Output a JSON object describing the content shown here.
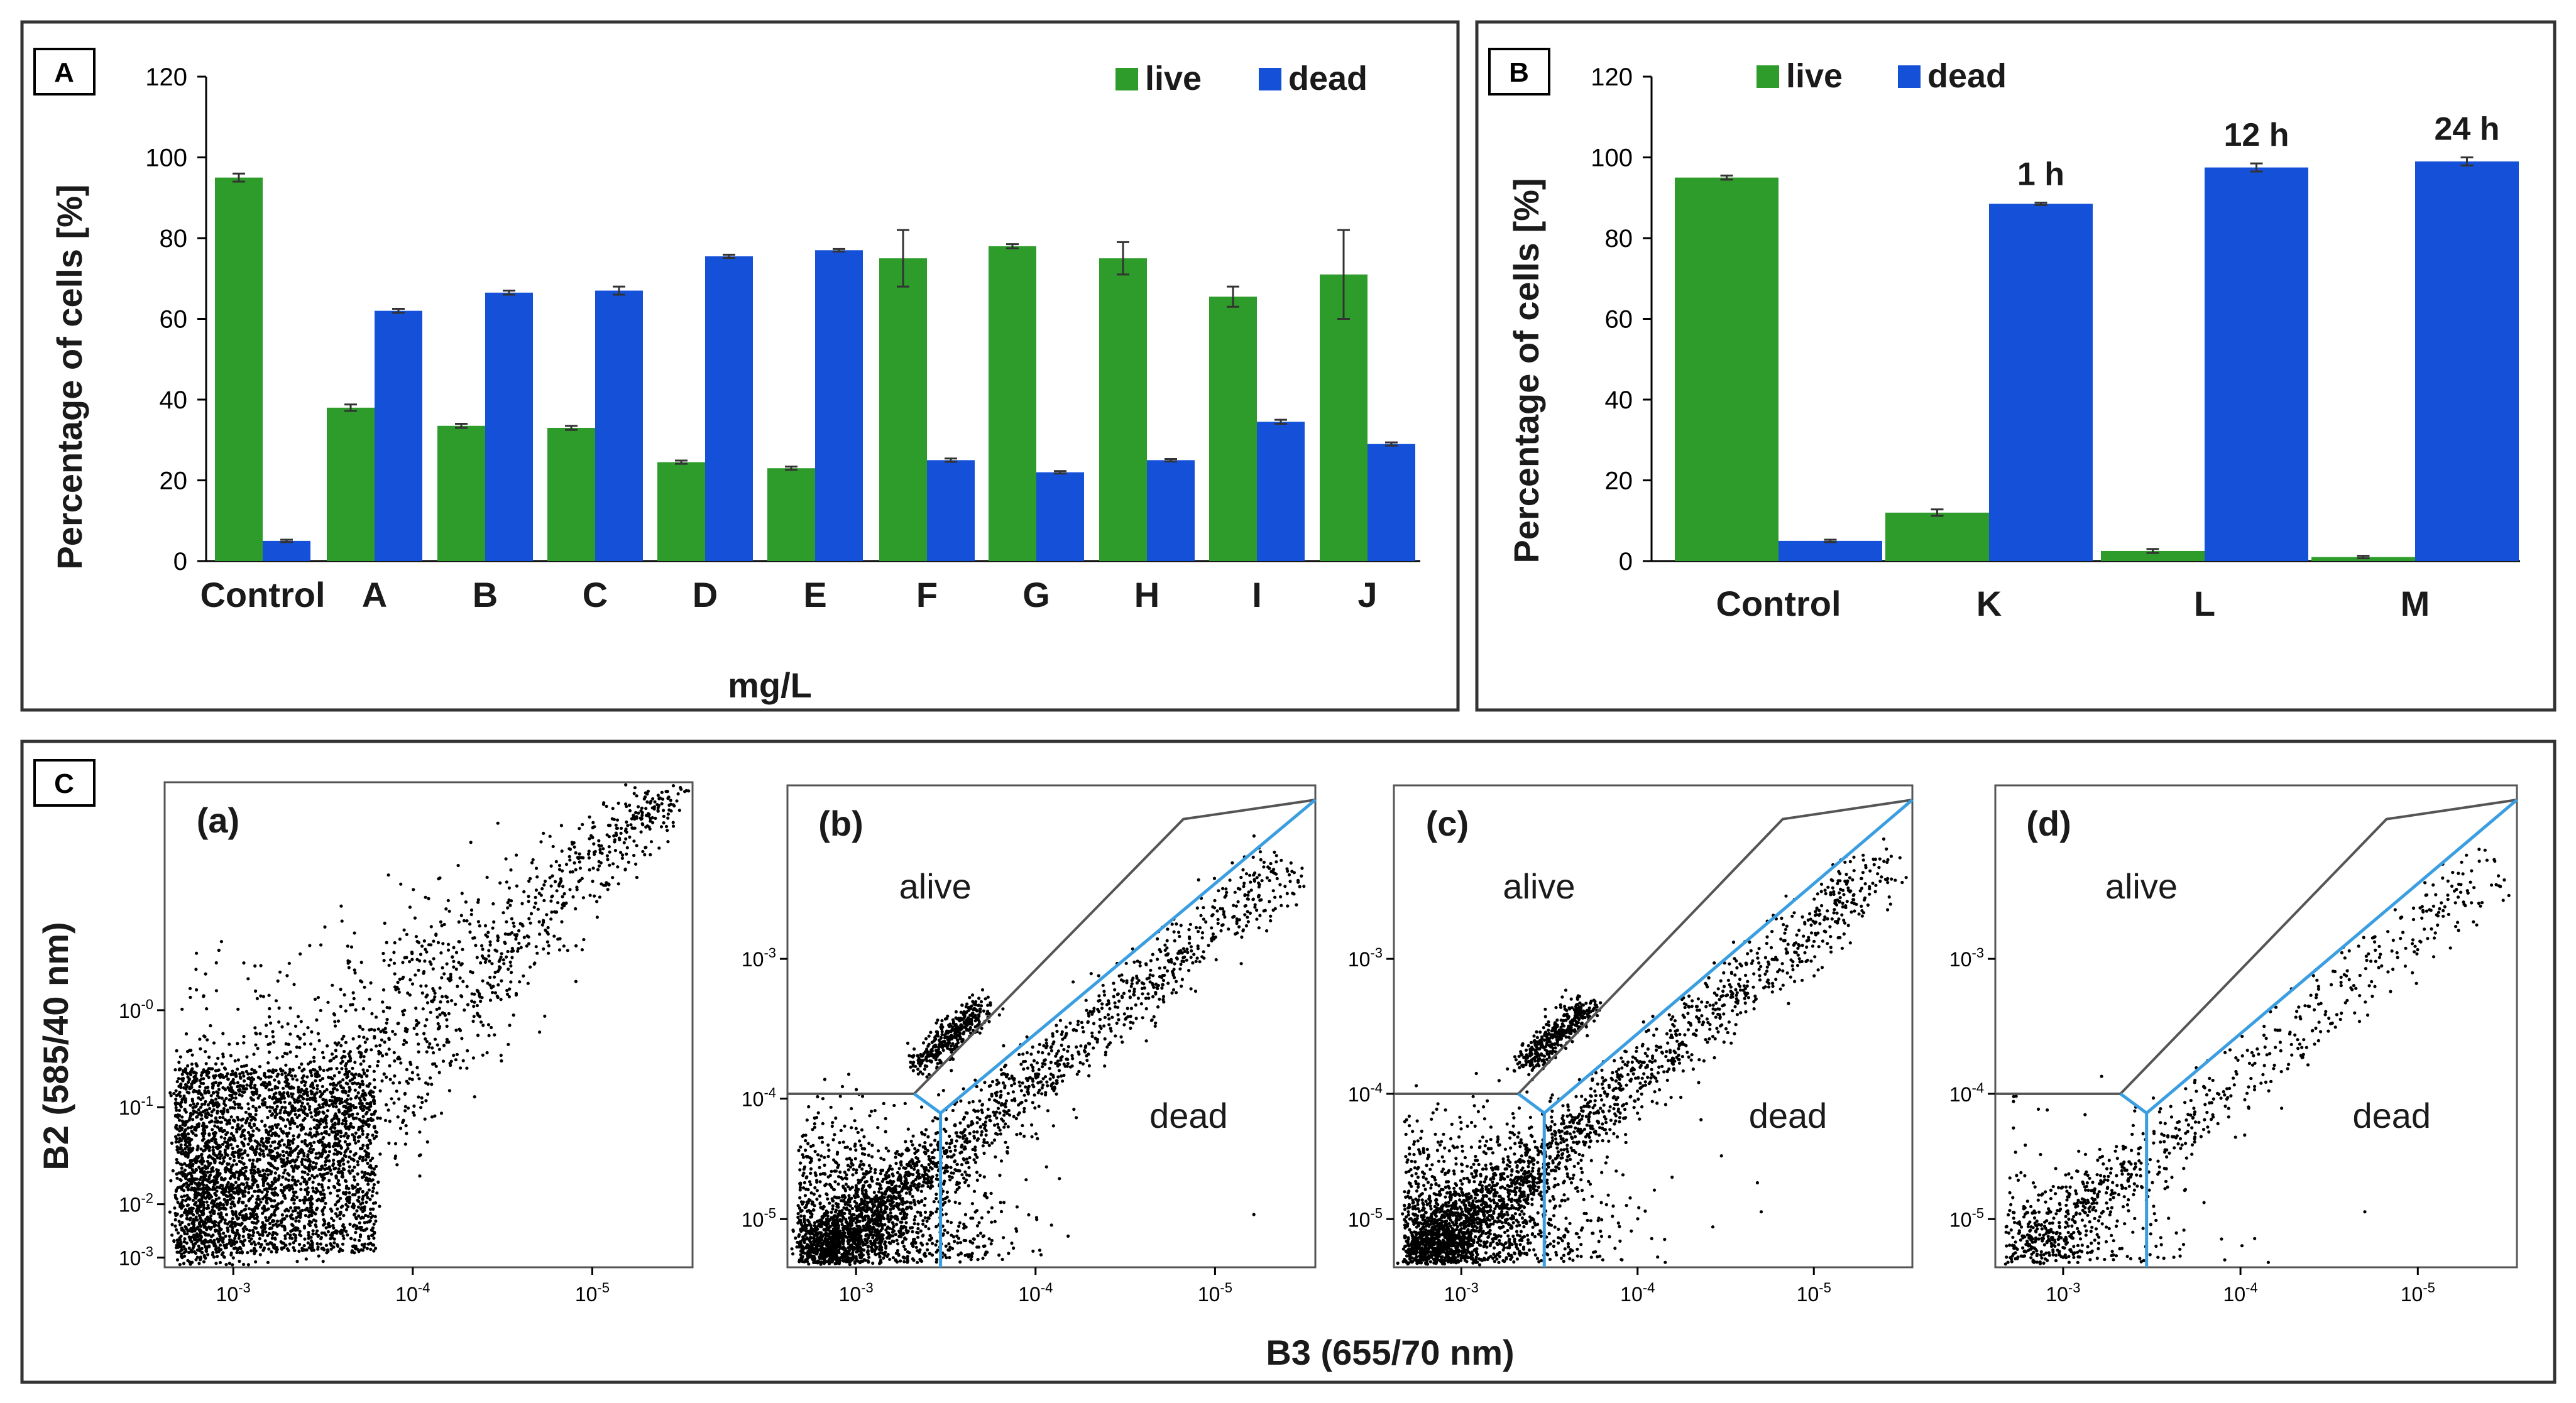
{
  "colors": {
    "live": "#2e9c2a",
    "dead": "#1550d8",
    "gate": "#3a9ee0"
  },
  "chart_data": [
    {
      "panel": "A",
      "type": "bar",
      "categories": [
        "Control",
        "A",
        "B",
        "C",
        "D",
        "E",
        "F",
        "G",
        "H",
        "I",
        "J"
      ],
      "series": [
        {
          "name": "live",
          "values": [
            95,
            38,
            33.5,
            33,
            24.5,
            23,
            75,
            78,
            75,
            65.5,
            71
          ],
          "errors": [
            1,
            0.8,
            0.5,
            0.5,
            0.4,
            0.4,
            7,
            0.5,
            4,
            2.5,
            11
          ]
        },
        {
          "name": "dead",
          "values": [
            5,
            62,
            66.5,
            67,
            75.5,
            77,
            25,
            22,
            25,
            34.5,
            29
          ],
          "errors": [
            0.3,
            0.5,
            0.5,
            1,
            0.4,
            0.3,
            0.4,
            0.3,
            0.3,
            0.5,
            0.4
          ]
        }
      ],
      "xlabel": "mg/L",
      "ylabel": "Percentage of cells [%]",
      "ylim": [
        0,
        120
      ],
      "yticks": [
        "0",
        "20",
        "40",
        "60",
        "80",
        "100",
        "120"
      ],
      "legend": [
        "live",
        "dead"
      ],
      "legend_position": "top-right"
    },
    {
      "panel": "B",
      "type": "bar",
      "categories": [
        "Control",
        "K",
        "L",
        "M"
      ],
      "series": [
        {
          "name": "live",
          "values": [
            95,
            12,
            2.5,
            1
          ],
          "errors": [
            0.5,
            0.8,
            0.5,
            0.3
          ]
        },
        {
          "name": "dead",
          "values": [
            5,
            88.5,
            97.5,
            99
          ],
          "errors": [
            0.3,
            0.3,
            1,
            1
          ]
        }
      ],
      "annotations": [
        "",
        "1 h",
        "12 h",
        "24 h"
      ],
      "xlabel": "",
      "ylabel": "Percentage of cells [%]",
      "ylim": [
        0,
        120
      ],
      "yticks": [
        "0",
        "20",
        "40",
        "60",
        "80",
        "100",
        "120"
      ],
      "legend": [
        "live",
        "dead"
      ],
      "legend_position": "top-left"
    },
    {
      "panel": "C",
      "type": "scatter",
      "xlabel": "B3 (655/70 nm)",
      "ylabel": "B2 (585/40 nm)",
      "subplots": [
        {
          "title": "(a)",
          "xticks": [
            "10",
            "10",
            "10"
          ],
          "xtick_exps": [
            "-3",
            "-4",
            "-5"
          ],
          "yticks": [
            "10",
            "10",
            "10",
            "10"
          ],
          "ytick_exps": [
            "-3",
            "-2",
            "-1",
            "-0"
          ],
          "regions": []
        },
        {
          "title": "(b)",
          "xticks": [
            "10",
            "10",
            "10"
          ],
          "xtick_exps": [
            "-3",
            "-4",
            "-5"
          ],
          "yticks": [
            "10",
            "10",
            "10"
          ],
          "ytick_exps": [
            "-5",
            "-4",
            "-3"
          ],
          "regions": [
            "alive",
            "dead"
          ]
        },
        {
          "title": "(c)",
          "xticks": [
            "10",
            "10",
            "10"
          ],
          "xtick_exps": [
            "-3",
            "-4",
            "-5"
          ],
          "yticks": [
            "10",
            "10",
            "10"
          ],
          "ytick_exps": [
            "-5",
            "-4",
            "-3"
          ],
          "regions": [
            "alive",
            "dead"
          ]
        },
        {
          "title": "(d)",
          "xticks": [
            "10",
            "10",
            "10"
          ],
          "xtick_exps": [
            "-3",
            "-4",
            "-5"
          ],
          "yticks": [
            "10",
            "10",
            "10"
          ],
          "ytick_exps": [
            "-5",
            "-4",
            "-3"
          ],
          "regions": [
            "alive",
            "dead"
          ]
        }
      ]
    }
  ]
}
